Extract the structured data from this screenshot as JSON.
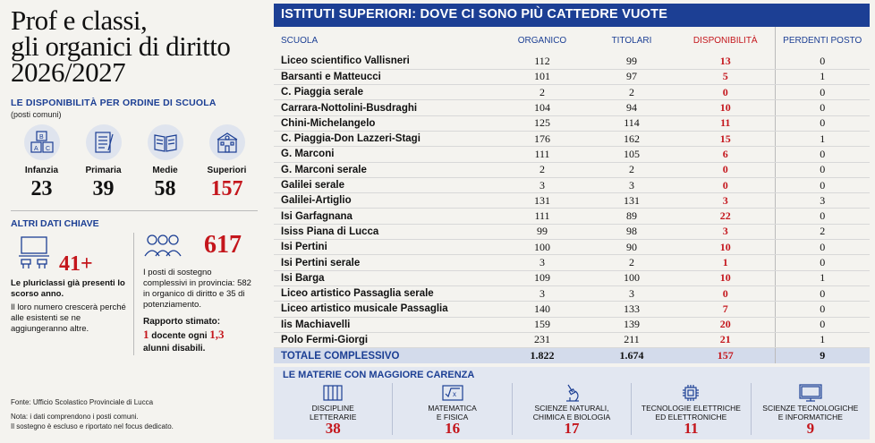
{
  "title_lines": [
    "Prof e classi,",
    "gli organici di diritto",
    "2026/2027"
  ],
  "levels_section": {
    "title": "LE DISPONIBILITÀ PER ORDINE DI SCUOLA",
    "subtitle": "(posti comuni)",
    "items": [
      {
        "label": "Infanzia",
        "value": "23",
        "icon": "abc-blocks-icon"
      },
      {
        "label": "Primaria",
        "value": "39",
        "icon": "notebook-icon"
      },
      {
        "label": "Medie",
        "value": "58",
        "icon": "open-book-icon"
      },
      {
        "label": "Superiori",
        "value": "157",
        "icon": "school-building-icon"
      }
    ]
  },
  "key_data": {
    "title": "ALTRI DATI CHIAVE",
    "pluriclassi": {
      "value": "41+",
      "bold_text": "Le pluriclassi già presenti lo scorso anno.",
      "text": "Il loro numero crescerà perché alle esistenti se ne aggiungeranno altre."
    },
    "sostegno": {
      "value": "617",
      "text": "I posti di sostegno complessivi in provincia: 582 in organico di diritto e 35 di potenziamento."
    },
    "ratio": {
      "label": "Rapporto stimato:",
      "n1": "1",
      "t1": "docente ogni",
      "n2": "1,3",
      "t2": "alunni disabili."
    }
  },
  "footer": {
    "source": "Fonte: Ufficio Scolastico Provinciale di Lucca",
    "note1": "Nota: i dati comprendono i posti comuni.",
    "note2": "Il sostegno è escluso e riportato nel focus dedicato."
  },
  "table": {
    "title": "ISTITUTI SUPERIORI: DOVE CI SONO PIÙ CATTEDRE VUOTE",
    "headers": [
      "SCUOLA",
      "ORGANICO",
      "TITOLARI",
      "DISPONIBILITÀ",
      "PERDENTI POSTO"
    ],
    "rows": [
      [
        "Liceo scientifico Vallisneri",
        "112",
        "99",
        "13",
        "0"
      ],
      [
        "Barsanti e Matteucci",
        "101",
        "97",
        "5",
        "1"
      ],
      [
        "C. Piaggia serale",
        "2",
        "2",
        "0",
        "0"
      ],
      [
        "Carrara-Nottolini-Busdraghi",
        "104",
        "94",
        "10",
        "0"
      ],
      [
        "Chini-Michelangelo",
        "125",
        "114",
        "11",
        "0"
      ],
      [
        "C. Piaggia-Don Lazzeri-Stagi",
        "176",
        "162",
        "15",
        "1"
      ],
      [
        "G. Marconi",
        "111",
        "105",
        "6",
        "0"
      ],
      [
        "G. Marconi serale",
        "2",
        "2",
        "0",
        "0"
      ],
      [
        "Galilei serale",
        "3",
        "3",
        "0",
        "0"
      ],
      [
        "Galilei-Artiglio",
        "131",
        "131",
        "3",
        "3"
      ],
      [
        "Isi Garfagnana",
        "111",
        "89",
        "22",
        "0"
      ],
      [
        "Isiss Piana di Lucca",
        "99",
        "98",
        "3",
        "2"
      ],
      [
        "Isi Pertini",
        "100",
        "90",
        "10",
        "0"
      ],
      [
        "Isi Pertini serale",
        "3",
        "2",
        "1",
        "0"
      ],
      [
        "Isi Barga",
        "109",
        "100",
        "10",
        "1"
      ],
      [
        "Liceo artistico Passaglia serale",
        "3",
        "3",
        "0",
        "0"
      ],
      [
        "Liceo artistico musicale Passaglia",
        "140",
        "133",
        "7",
        "0"
      ],
      [
        "Iis Machiavelli",
        "159",
        "139",
        "20",
        "0"
      ],
      [
        "Polo Fermi-Giorgi",
        "231",
        "211",
        "21",
        "1"
      ]
    ],
    "total": [
      "TOTALE COMPLESSIVO",
      "1.822",
      "1.674",
      "157",
      "9"
    ]
  },
  "subjects": {
    "title": "LE MATERIE CON MAGGIORE CARENZA",
    "items": [
      {
        "label1": "DISCIPLINE",
        "label2": "LETTERARIE",
        "value": "38",
        "icon": "books-icon"
      },
      {
        "label1": "MATEMATICA",
        "label2": "E FISICA",
        "value": "16",
        "icon": "square-root-icon"
      },
      {
        "label1": "SCIENZE NATURALI,",
        "label2": "CHIMICA E BIOLOGIA",
        "value": "17",
        "icon": "microscope-icon"
      },
      {
        "label1": "TECNOLOGIE ELETTRICHE",
        "label2": "ED ELETTRONICHE",
        "value": "11",
        "icon": "circuit-chip-icon"
      },
      {
        "label1": "SCIENZE TECNOLOGICHE",
        "label2": "E INFORMATICHE",
        "value": "9",
        "icon": "monitor-icon"
      }
    ]
  },
  "colors": {
    "accent": "#1c3f94",
    "highlight": "#c4161c",
    "background": "#f4f3ef"
  }
}
